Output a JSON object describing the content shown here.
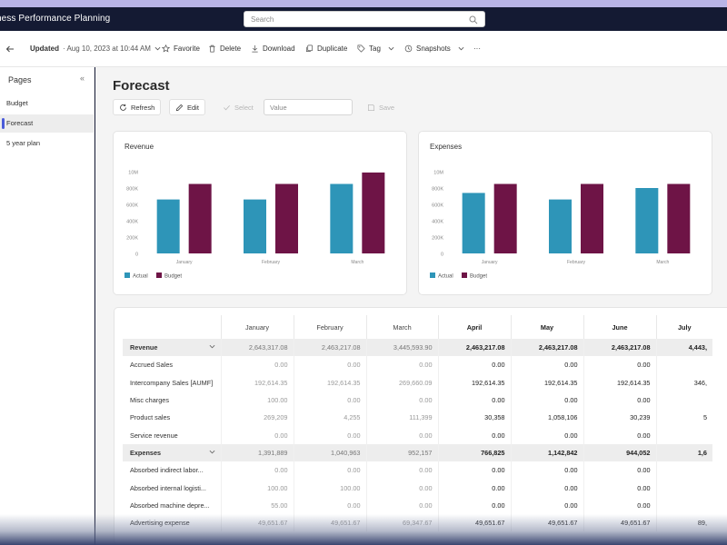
{
  "app": {
    "title": "ness Performance Planning"
  },
  "search": {
    "placeholder": "Search"
  },
  "cmdbar": {
    "updated_label": "Updated",
    "updated_value": "· Aug 10, 2023 at 10:44 AM",
    "favorite": "Favorite",
    "delete": "Delete",
    "download": "Download",
    "duplicate": "Duplicate",
    "tag": "Tag",
    "snapshots": "Snapshots",
    "more": "···"
  },
  "sidebar": {
    "header": "Pages",
    "collapse": "«",
    "items": [
      {
        "label": "Budget"
      },
      {
        "label": "Forecast"
      },
      {
        "label": "5 year plan"
      }
    ]
  },
  "page": {
    "title": "Forecast",
    "toolbar": {
      "refresh": "Refresh",
      "edit": "Edit",
      "select": "Select",
      "value_placeholder": "Value",
      "save": "Save"
    }
  },
  "charts_meta": {
    "colors": {
      "actual": "#2e95b8",
      "budget": "#6e1446"
    },
    "y_ticks": [
      "10M",
      "800K",
      "600K",
      "400K",
      "200K",
      "0"
    ]
  },
  "chart_data": [
    {
      "type": "bar",
      "title": "Revenue",
      "categories": [
        "January",
        "February",
        "March"
      ],
      "y_ticks": [
        "10M",
        "800K",
        "600K",
        "400K",
        "200K",
        "0"
      ],
      "ylim": [
        0,
        1000000
      ],
      "series": [
        {
          "name": "Actual",
          "values": [
            660000,
            660000,
            850000
          ]
        },
        {
          "name": "Budget",
          "values": [
            850000,
            850000,
            990000
          ]
        }
      ],
      "legend": "bottom-left"
    },
    {
      "type": "bar",
      "title": "Expenses",
      "categories": [
        "January",
        "February",
        "March"
      ],
      "y_ticks": [
        "10M",
        "800K",
        "600K",
        "400K",
        "200K",
        "0"
      ],
      "ylim": [
        0,
        1000000
      ],
      "series": [
        {
          "name": "Actual",
          "values": [
            740000,
            660000,
            800000
          ]
        },
        {
          "name": "Budget",
          "values": [
            850000,
            850000,
            850000
          ]
        }
      ],
      "legend": "bottom-left"
    }
  ],
  "table": {
    "columns": [
      "January",
      "February",
      "March",
      "April",
      "May",
      "June",
      "July"
    ],
    "rows": [
      {
        "label": "Revenue",
        "group": true,
        "values": [
          "2,643,317.08",
          "2,463,217.08",
          "3,445,593.90",
          "2,463,217.08",
          "2,463,217.08",
          "2,463,217.08",
          "4,443,"
        ]
      },
      {
        "label": "Accrued Sales",
        "values": [
          "0.00",
          "0.00",
          "0.00",
          "0.00",
          "0.00",
          "0.00",
          ""
        ]
      },
      {
        "label": "Intercompany Sales [AUMF]",
        "values": [
          "192,614.35",
          "192,614.35",
          "269,660.09",
          "192,614.35",
          "192,614.35",
          "192,614.35",
          "346,"
        ]
      },
      {
        "label": "Misc charges",
        "values": [
          "100.00",
          "0.00",
          "0.00",
          "0.00",
          "0.00",
          "0.00",
          ""
        ]
      },
      {
        "label": "Product sales",
        "values": [
          "269,209",
          "4,255",
          "111,399",
          "30,358",
          "1,058,106",
          "30,239",
          "5"
        ]
      },
      {
        "label": "Service revenue",
        "values": [
          "0.00",
          "0.00",
          "0.00",
          "0.00",
          "0.00",
          "0.00",
          ""
        ]
      },
      {
        "label": "Expenses",
        "group": true,
        "values": [
          "1,391,889",
          "1,040,963",
          "952,157",
          "766,825",
          "1,142,842",
          "944,052",
          "1,6"
        ]
      },
      {
        "label": "Absorbed indirect labor...",
        "values": [
          "0.00",
          "0.00",
          "0.00",
          "0.00",
          "0.00",
          "0.00",
          ""
        ]
      },
      {
        "label": "Absorbed internal logisti...",
        "values": [
          "100.00",
          "100.00",
          "0.00",
          "0.00",
          "0.00",
          "0.00",
          ""
        ]
      },
      {
        "label": "Absorbed machine depre...",
        "values": [
          "55.00",
          "0.00",
          "0.00",
          "0.00",
          "0.00",
          "0.00",
          ""
        ]
      },
      {
        "label": "Advertising expense",
        "values": [
          "49,651.67",
          "49,651.67",
          "69,347.67",
          "49,651.67",
          "49,651.67",
          "49,651.67",
          "89,"
        ]
      }
    ]
  }
}
